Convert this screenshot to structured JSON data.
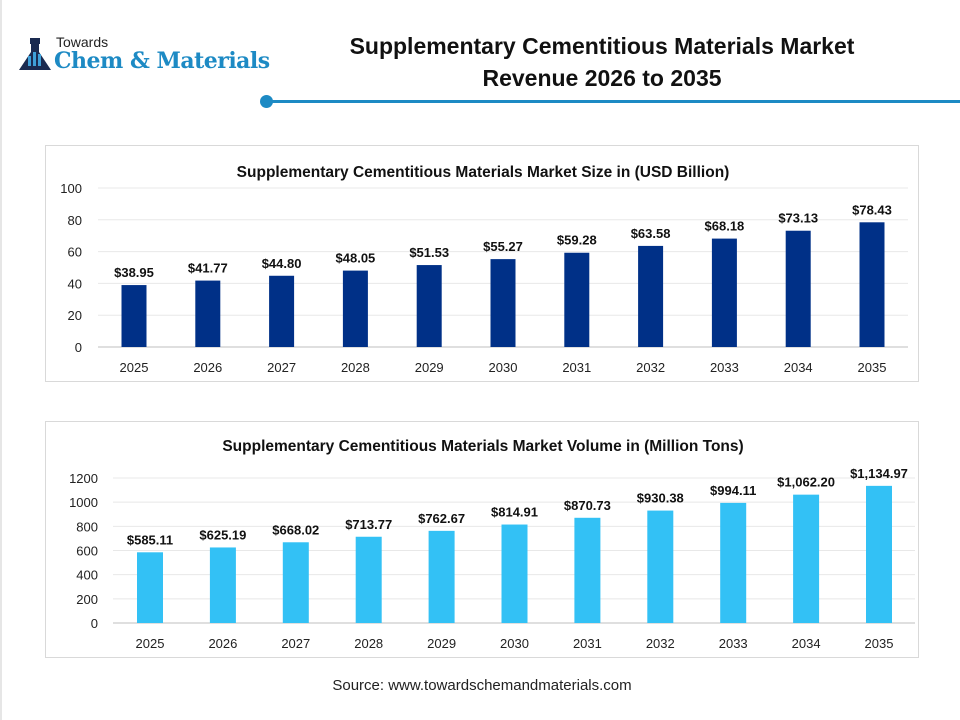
{
  "logo": {
    "line1": "Towards",
    "line2": "Chem & Materials"
  },
  "header": {
    "title_line1": "Supplementary Cementitious Materials Market",
    "title_line2": "Revenue 2026 to 2035",
    "accent": "#1d8ac4"
  },
  "chart_data": [
    {
      "type": "bar",
      "title": "Supplementary Cementitious Materials Market Size in (USD Billion)",
      "categories": [
        "2025",
        "2026",
        "2027",
        "2028",
        "2029",
        "2030",
        "2031",
        "2032",
        "2033",
        "2034",
        "2035"
      ],
      "values": [
        38.95,
        41.77,
        44.8,
        48.05,
        51.53,
        55.27,
        59.28,
        63.58,
        68.18,
        73.13,
        78.43
      ],
      "data_labels": [
        "$38.95",
        "$41.77",
        "$44.80",
        "$48.05",
        "$51.53",
        "$55.27",
        "$59.28",
        "$63.58",
        "$68.18",
        "$73.13",
        "$78.43"
      ],
      "yticks": [
        "0",
        "20",
        "40",
        "60",
        "80",
        "100"
      ],
      "ylim": [
        0,
        100
      ],
      "grid": true,
      "color": "#003087"
    },
    {
      "type": "bar",
      "title": "Supplementary Cementitious Materials Market Volume in (Million Tons)",
      "categories": [
        "2025",
        "2026",
        "2027",
        "2028",
        "2029",
        "2030",
        "2031",
        "2032",
        "2033",
        "2034",
        "2035"
      ],
      "values": [
        585.11,
        625.19,
        668.02,
        713.77,
        762.67,
        814.91,
        870.73,
        930.38,
        994.11,
        1062.2,
        1134.97
      ],
      "data_labels": [
        "$585.11",
        "$625.19",
        "$668.02",
        "$713.77",
        "$762.67",
        "$814.91",
        "$870.73",
        "$930.38",
        "$994.11",
        "$1,062.20",
        "$1,134.97"
      ],
      "yticks": [
        "0",
        "200",
        "400",
        "600",
        "800",
        "1000",
        "1200"
      ],
      "ylim": [
        0,
        1200
      ],
      "grid": true,
      "color": "#33c1f5"
    }
  ],
  "source": "Source: www.towardschemandmaterials.com"
}
